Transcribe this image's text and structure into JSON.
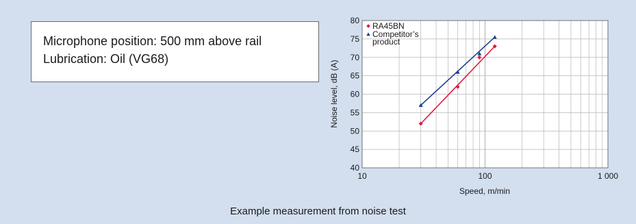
{
  "conditions": {
    "lines": [
      "Microphone position: 500 mm above rail",
      "Lubrication: Oil (VG68)"
    ]
  },
  "caption": "Example measurement from noise test",
  "chart_data": {
    "type": "line",
    "xlabel": "Speed, m/min",
    "ylabel": "Noise level, dB (A)",
    "x_scale": "log",
    "xlim": [
      10,
      1000
    ],
    "ylim": [
      40,
      80
    ],
    "x_ticks": [
      10,
      100,
      1000
    ],
    "x_tick_labels": [
      "10",
      "100",
      "1 000"
    ],
    "y_ticks": [
      40,
      45,
      50,
      55,
      60,
      65,
      70,
      75,
      80
    ],
    "y_tick_labels": [
      "40",
      "45",
      "50",
      "55",
      "60",
      "65",
      "70",
      "75",
      "80"
    ],
    "grid": true,
    "legend": "top-left",
    "series": [
      {
        "name": "RA45BN",
        "legend_lines": [
          "RA45BN"
        ],
        "marker": "diamond",
        "color": "#e5173f",
        "x": [
          30,
          60,
          90,
          120
        ],
        "y": [
          52,
          62,
          70,
          73
        ]
      },
      {
        "name": "Competitor's product",
        "legend_lines": [
          "Competitor’s",
          "product"
        ],
        "marker": "triangle",
        "color": "#1f3f8f",
        "x": [
          30,
          60,
          90,
          120
        ],
        "y": [
          57,
          66,
          71,
          75.5
        ]
      }
    ]
  }
}
